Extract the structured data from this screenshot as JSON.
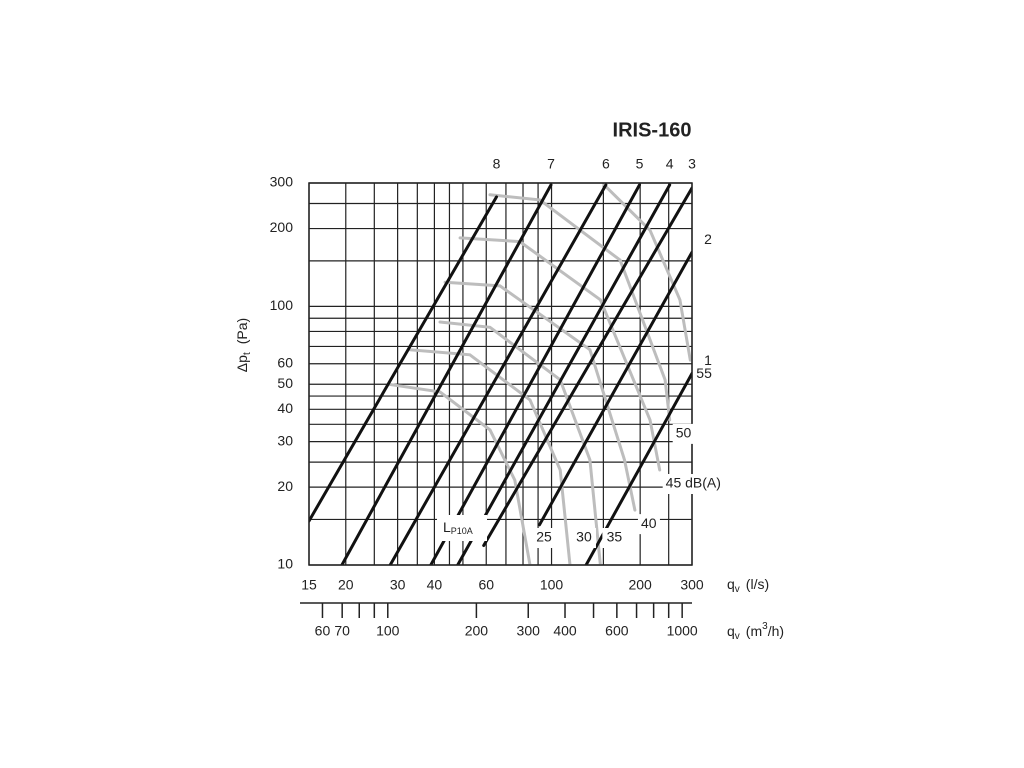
{
  "chart_data": {
    "type": "line",
    "title": "IRIS-160",
    "xlog": true,
    "ylog": true,
    "grid": true,
    "xlim": [
      15,
      300
    ],
    "ylim": [
      10,
      300
    ],
    "xticks": [
      15,
      20,
      30,
      40,
      60,
      100,
      200,
      300
    ],
    "yticks": [
      10,
      20,
      30,
      40,
      50,
      60,
      100,
      200,
      300
    ],
    "xgrid": [
      15,
      20,
      25,
      30,
      35,
      40,
      45,
      50,
      60,
      70,
      80,
      90,
      100,
      150,
      200,
      250,
      300
    ],
    "ygrid": [
      10,
      15,
      20,
      25,
      30,
      35,
      40,
      45,
      50,
      60,
      70,
      80,
      90,
      100,
      150,
      200,
      250,
      300
    ],
    "x_label": {
      "main": "q",
      "sub": "v",
      "unit": "(l/s)"
    },
    "y_label": {
      "main": "Δp",
      "sub": "t",
      "unit": "(Pa)"
    },
    "x2_label": {
      "main": "q",
      "sub": "v",
      "unit": "(m",
      "sup": "3",
      "unit_end": "/h)"
    },
    "x2lim": [
      54,
      1080
    ],
    "x2ticks": [
      60,
      70,
      100,
      200,
      300,
      400,
      600,
      1000
    ],
    "x2minor": [
      80,
      90,
      500,
      700,
      800,
      900
    ],
    "curve_label": {
      "main": "L",
      "sub": "P10A"
    },
    "series": [
      {
        "name": "8",
        "group": "position",
        "color": "#111111",
        "x": [
          15,
          65
        ],
        "values": [
          14.8,
          265
        ]
      },
      {
        "name": "7",
        "group": "position",
        "color": "#111111",
        "x": [
          19.4,
          99.6
        ],
        "values": [
          10,
          295
        ]
      },
      {
        "name": "6",
        "group": "position",
        "color": "#111111",
        "x": [
          28.3,
          153
        ],
        "values": [
          10,
          295
        ]
      },
      {
        "name": "5",
        "group": "position",
        "color": "#111111",
        "x": [
          38.9,
          199
        ],
        "values": [
          10,
          295
        ]
      },
      {
        "name": "4",
        "group": "position",
        "color": "#111111",
        "x": [
          48,
          252
        ],
        "values": [
          10,
          295
        ]
      },
      {
        "name": "3",
        "group": "position",
        "color": "#111111",
        "x": [
          58.8,
          300
        ],
        "values": [
          11.9,
          287
        ]
      },
      {
        "name": "2",
        "group": "position",
        "color": "#111111",
        "x": [
          91,
          300
        ],
        "values": [
          14.3,
          162
        ]
      },
      {
        "name": "1",
        "group": "position",
        "color": "#111111",
        "x": [
          131,
          300
        ],
        "values": [
          10,
          55
        ]
      },
      {
        "name": "25",
        "group": "noise",
        "color": "#bdbdbd",
        "x": [
          27.8,
          41.8,
          61.8,
          75,
          84.5
        ],
        "values": [
          50,
          46.7,
          33.3,
          21.3,
          10
        ]
      },
      {
        "name": "30",
        "group": "noise",
        "color": "#bdbdbd",
        "x": [
          33,
          52.8,
          84.5,
          107,
          115.5
        ],
        "values": [
          68,
          65,
          43.5,
          23.3,
          10
        ]
      },
      {
        "name": "35",
        "group": "noise",
        "color": "#bdbdbd",
        "x": [
          41.8,
          61.8,
          107,
          135,
          146.5
        ],
        "values": [
          87,
          83,
          52,
          25.5,
          10
        ]
      },
      {
        "name": "40",
        "group": "noise",
        "color": "#bdbdbd",
        "x": [
          43.5,
          66.8,
          135,
          177,
          192
        ],
        "values": [
          124,
          120,
          68,
          25.5,
          16.3
        ]
      },
      {
        "name": "45 dB(A)",
        "group": "noise",
        "color": "#bdbdbd",
        "x": [
          48.9,
          78,
          146.5,
          216,
          233
        ],
        "values": [
          184,
          178,
          106,
          36.4,
          23.3
        ]
      },
      {
        "name": "50",
        "group": "noise",
        "color": "#bdbdbd",
        "x": [
          61.8,
          91.3,
          171,
          243,
          252
        ],
        "values": [
          270,
          258,
          151,
          52,
          36.4
        ]
      },
      {
        "name": "55",
        "group": "noise",
        "color": "#bdbdbd",
        "x": [
          151,
          216,
          273,
          296
        ],
        "values": [
          295,
          197,
          106,
          62
        ]
      }
    ]
  }
}
